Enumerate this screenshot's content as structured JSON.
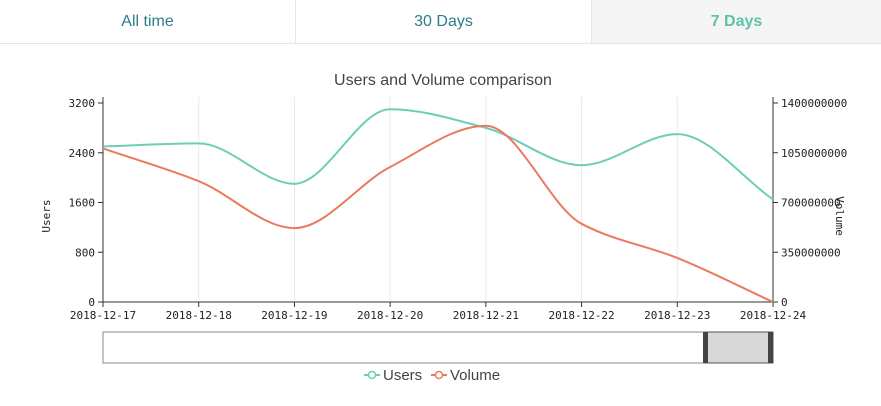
{
  "tabs": [
    {
      "label": "All time"
    },
    {
      "label": "30 Days"
    },
    {
      "label": "7 Days",
      "active": true
    }
  ],
  "colors": {
    "users": "#6dcdb8",
    "volume": "#ea7a5e",
    "active_tab": "#5ec2a8",
    "tab_text": "#2e7c8c"
  },
  "chart_data": {
    "type": "line",
    "title": "Users and Volume comparison",
    "categories": [
      "2018-12-17",
      "2018-12-18",
      "2018-12-19",
      "2018-12-20",
      "2018-12-21",
      "2018-12-22",
      "2018-12-23",
      "2018-12-24"
    ],
    "ylabel": "Users",
    "y2label": "Volume",
    "ylim": [
      0,
      3200
    ],
    "y2lim": [
      0,
      1400000000
    ],
    "yticks": [
      "0",
      "800",
      "1600",
      "2400",
      "3200"
    ],
    "y2ticks": [
      "0",
      "350000000",
      "700000000",
      "1050000000",
      "1400000000"
    ],
    "series": [
      {
        "name": "Users",
        "axis": "y",
        "values": [
          2500,
          2550,
          1900,
          3100,
          2800,
          2200,
          2700,
          1650
        ]
      },
      {
        "name": "Volume",
        "axis": "y2",
        "values": [
          1080000000,
          850000000,
          520000000,
          950000000,
          1240000000,
          550000000,
          310000000,
          0
        ]
      }
    ],
    "legend": "bottom"
  }
}
